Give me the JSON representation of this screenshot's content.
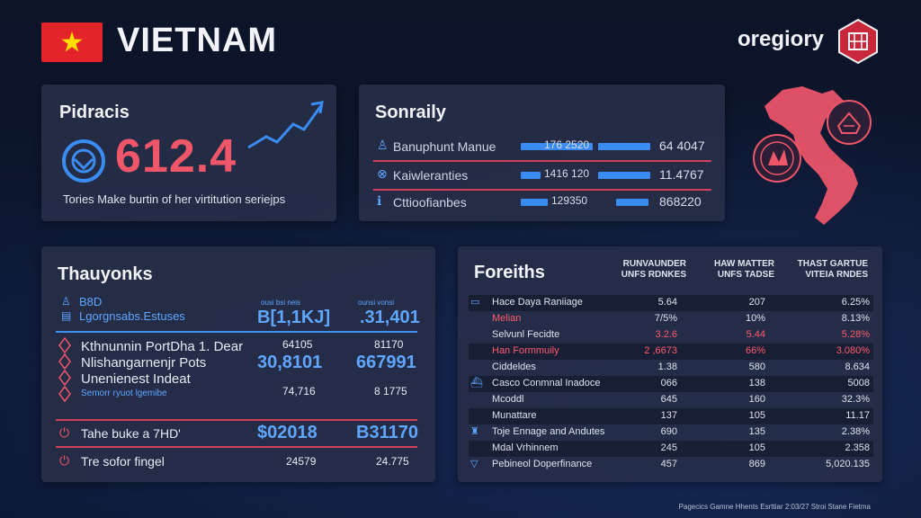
{
  "header": {
    "country": "VIETNAM",
    "brand": "oregiory",
    "colors": {
      "flag_red": "#e3242b",
      "flag_star": "#ffde00",
      "accent_red": "#f0566a",
      "accent_blue": "#3b8cf2"
    }
  },
  "panel1": {
    "title": "Pidracis",
    "value": "612.4",
    "subtitle": "Tories Make burtin of her virtitution seriejps"
  },
  "panel2": {
    "title": "Sonraily",
    "rows": [
      {
        "label": "Banuphunt Manue",
        "value1": "176 2520",
        "value2": "64 4047"
      },
      {
        "label": "Kaiwleranties",
        "value1": "1416 120",
        "value2": "11.4767"
      },
      {
        "label": "Cttioofianbes",
        "value1": "129350",
        "value2": "868220"
      }
    ]
  },
  "panel3": {
    "title": "Thauyonks",
    "head_label1": "B8D",
    "head_label2": "Lgorgnsabs.Estuses",
    "head_col1_small": "ousi bsi neis",
    "head_col2_small": "ounsi vonsi",
    "head_val1": "B[1,1KJ]",
    "head_val2": ".31,401",
    "group_lines": [
      "Kthnunnin PortDha 1. Dear",
      "Nlishangarnenjr Pots",
      "Unenienest Indeat"
    ],
    "group_caption": "Semorr ryuot lgemibe",
    "group_small1": "64105",
    "group_small2": "81170",
    "group_big1": "30,8101",
    "group_big2": "667991",
    "group_after1": "74,716",
    "group_after2": "8 1775",
    "row1_label": "Tahe buke a 7HD'",
    "row1_val1": "$02018",
    "row1_val2": "B31170",
    "row2_label": "Tre sofor fingel",
    "row2_val1": "24579",
    "row2_val2": "24.775"
  },
  "panel4": {
    "title": "Foreiths",
    "columns": [
      [
        "RUNVAUNDER",
        "UNFS RDNKES"
      ],
      [
        "HAW MATTER",
        "UNFS TADSE"
      ],
      [
        "THAST GARTUE",
        "VITEIA RNDES"
      ]
    ],
    "rows": [
      {
        "label": "Hace Daya Raniiage",
        "c1": "5.64",
        "c2": "207",
        "c3": "6.25%"
      },
      {
        "label": "Melian",
        "c1": "7/5%",
        "c2": "10%",
        "c3": "8.13%"
      },
      {
        "label": "Selvunl Fecidte",
        "c1": "3.2.6",
        "c2": "5.44",
        "c3": "5.28%"
      },
      {
        "label": "Han Formmuily",
        "c1": "2 ,6673",
        "c2": "66%",
        "c3": "3.080%"
      },
      {
        "label": "Ciddeldes",
        "c1": "1.38",
        "c2": "580",
        "c3": "8.634"
      },
      {
        "label": "Casco Conmnal Inadoce",
        "c1": "066",
        "c2": "138",
        "c3": "5008"
      },
      {
        "label": "Mcoddl",
        "c1": "645",
        "c2": "160",
        "c3": "32.3%"
      },
      {
        "label": "Munattare",
        "c1": "137",
        "c2": "105",
        "c3": "11.17"
      },
      {
        "label": "Toje Ennage and Andutes",
        "c1": "690",
        "c2": "135",
        "c3": "2.38%"
      },
      {
        "label": "Mdal Vrhinnem",
        "c1": "245",
        "c2": "105",
        "c3": "2.358"
      },
      {
        "label": "Pebineol Doperfinance",
        "c1": "457",
        "c2": "869",
        "c3": "5,020.135"
      }
    ]
  },
  "footer": {
    "text": "Pagecics Gamne Hhents Esrttiar 2:03/27 Stroi Stane Fietma"
  }
}
